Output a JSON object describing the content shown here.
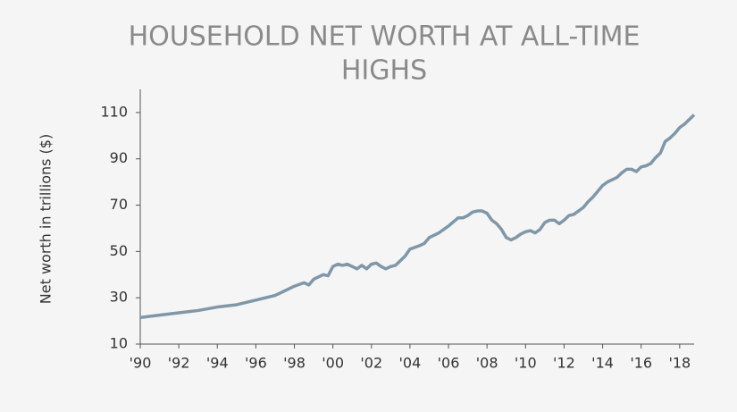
{
  "chart_data": {
    "type": "line",
    "title_lines": [
      "HOUSEHOLD NET WORTH AT ALL-TIME",
      "HIGHS"
    ],
    "y_label": "Net worth in trillions ($)",
    "x": [
      1990,
      1991,
      1992,
      1993,
      1994,
      1995,
      1996,
      1997,
      1997.5,
      1998,
      1998.5,
      1998.75,
      1999,
      1999.5,
      1999.75,
      2000,
      2000.25,
      2000.5,
      2000.75,
      2001,
      2001.25,
      2001.5,
      2001.75,
      2002,
      2002.25,
      2002.5,
      2002.75,
      2003,
      2003.25,
      2003.5,
      2003.75,
      2004,
      2004.5,
      2004.75,
      2005,
      2005.5,
      2006,
      2006.5,
      2006.75,
      2007,
      2007.25,
      2007.5,
      2007.75,
      2008,
      2008.25,
      2008.5,
      2008.75,
      2009,
      2009.25,
      2009.5,
      2009.75,
      2010,
      2010.25,
      2010.5,
      2010.75,
      2011,
      2011.25,
      2011.5,
      2011.75,
      2012,
      2012.25,
      2012.5,
      2012.75,
      2013,
      2013.25,
      2013.5,
      2013.75,
      2014,
      2014.25,
      2014.5,
      2014.75,
      2015,
      2015.25,
      2015.5,
      2015.75,
      2016,
      2016.25,
      2016.5,
      2016.75,
      2017,
      2017.25,
      2017.5,
      2017.75,
      2018,
      2018.25,
      2018.5,
      2018.75
    ],
    "series": [
      {
        "name": "Household net worth",
        "color": "#7f97a8",
        "values": [
          21.5,
          22.5,
          23.5,
          24.5,
          26,
          27,
          29,
          31,
          33,
          35,
          36.5,
          35.5,
          38,
          40,
          39.5,
          43.5,
          44.5,
          44,
          44.5,
          43.5,
          42.5,
          44,
          42.5,
          44.5,
          45,
          43.5,
          42.5,
          43.5,
          44,
          46,
          48,
          51,
          52.5,
          53.5,
          56,
          58,
          61,
          64.5,
          64.5,
          65.5,
          67,
          67.5,
          67.5,
          66.5,
          63.5,
          62,
          59.5,
          56,
          55,
          56,
          57.5,
          58.5,
          59,
          58,
          59.5,
          62.5,
          63.5,
          63.5,
          62,
          63.5,
          65.5,
          66,
          67.5,
          69,
          71.5,
          73.5,
          76,
          78.5,
          80,
          81,
          82,
          84,
          85.5,
          85.5,
          84.5,
          86.5,
          87,
          88,
          90.5,
          92.5,
          97.5,
          99,
          101,
          103.5,
          105,
          107,
          109
        ]
      }
    ],
    "xlim": [
      1990,
      2018.75
    ],
    "ylim": [
      10,
      120
    ],
    "xticks": [
      {
        "value": 1990,
        "label": "'90"
      },
      {
        "value": 1992,
        "label": "'92"
      },
      {
        "value": 1994,
        "label": "'94"
      },
      {
        "value": 1996,
        "label": "'96"
      },
      {
        "value": 1998,
        "label": "'98"
      },
      {
        "value": 2000,
        "label": "'00"
      },
      {
        "value": 2002,
        "label": "'02"
      },
      {
        "value": 2004,
        "label": "'04"
      },
      {
        "value": 2006,
        "label": "'06"
      },
      {
        "value": 2008,
        "label": "'08"
      },
      {
        "value": 2010,
        "label": "'10"
      },
      {
        "value": 2012,
        "label": "'12"
      },
      {
        "value": 2014,
        "label": "'14"
      },
      {
        "value": 2016,
        "label": "'16"
      },
      {
        "value": 2018,
        "label": "'18"
      }
    ],
    "yticks": [
      10,
      30,
      50,
      70,
      90,
      110
    ],
    "grid": false
  }
}
